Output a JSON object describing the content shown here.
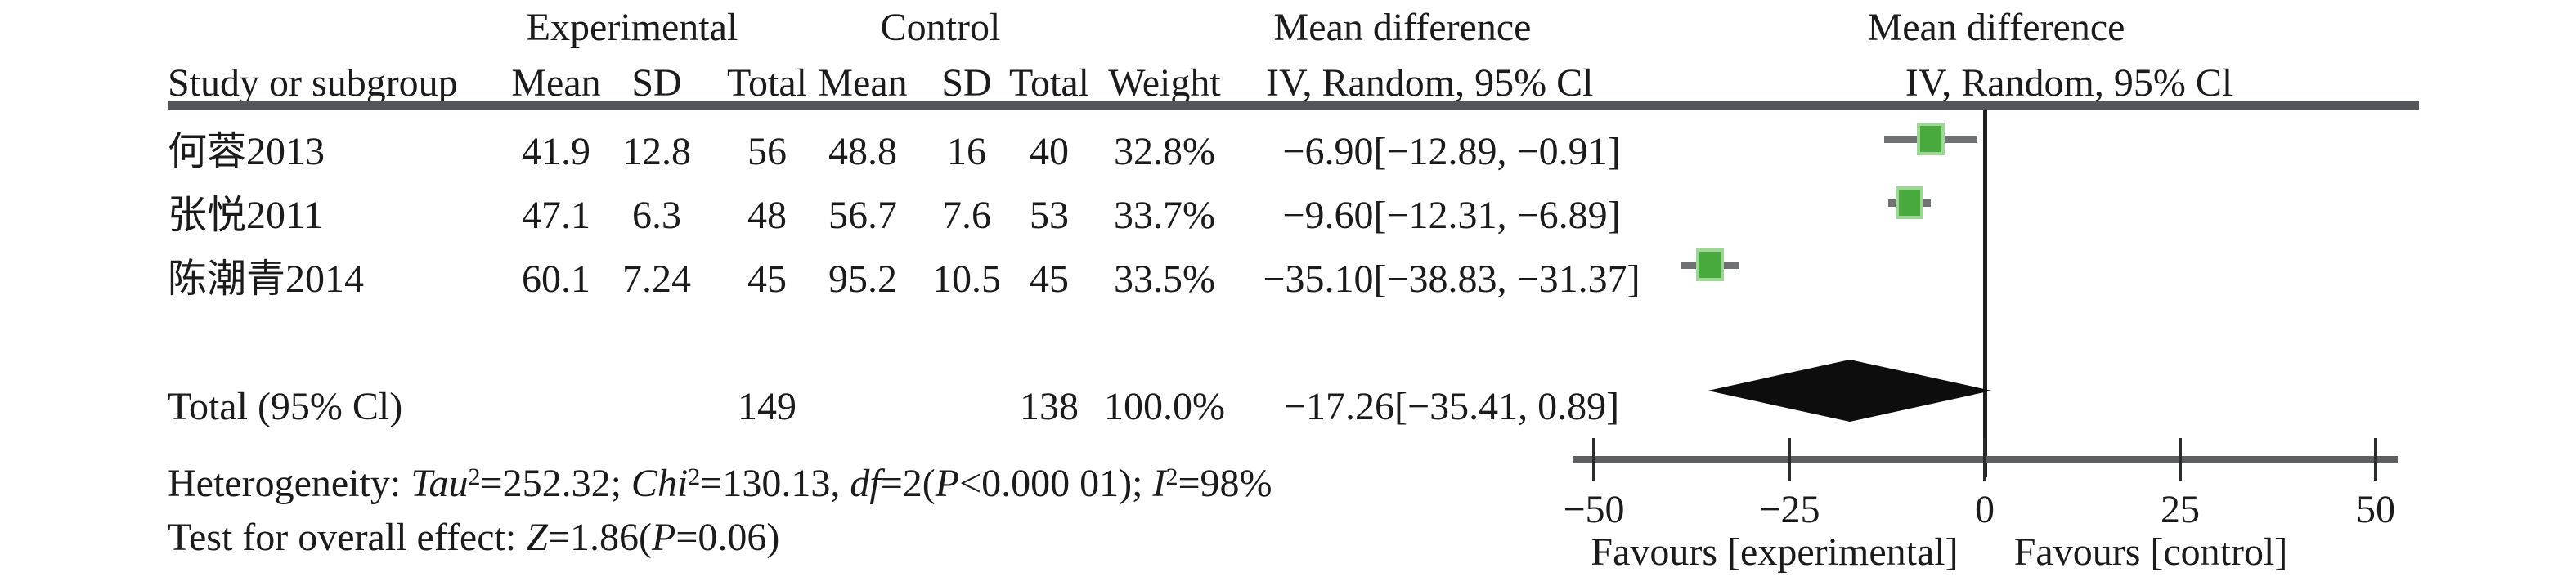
{
  "chart_data": {
    "type": "forest",
    "effect_measure": "Mean difference",
    "model": "IV, Random, 95% Cl",
    "header": {
      "group1": "Experimental",
      "group2": "Control",
      "effect_left": "Mean difference",
      "effect_right": "Mean difference",
      "study_col": "Study or subgroup",
      "mean_col": "Mean",
      "sd_col": "SD",
      "total_col": "Total",
      "weight_col": "Weight",
      "ci_left_col": "IV, Random, 95% Cl",
      "ci_right_col": "IV, Random, 95% Cl"
    },
    "studies": [
      {
        "name": "何蓉2013",
        "exp_mean": "41.9",
        "exp_sd": "12.8",
        "exp_total": "56",
        "ctrl_mean": "48.8",
        "ctrl_sd": "16",
        "ctrl_total": "40",
        "weight": "32.8%",
        "ci_text": "−6.90[−12.89, −0.91]",
        "md": -6.9,
        "ci_low": -12.89,
        "ci_high": -0.91
      },
      {
        "name": "张悦2011",
        "exp_mean": "47.1",
        "exp_sd": "6.3",
        "exp_total": "48",
        "ctrl_mean": "56.7",
        "ctrl_sd": "7.6",
        "ctrl_total": "53",
        "weight": "33.7%",
        "ci_text": "−9.60[−12.31, −6.89]",
        "md": -9.6,
        "ci_low": -12.31,
        "ci_high": -6.89
      },
      {
        "name": "陈潮青2014",
        "exp_mean": "60.1",
        "exp_sd": "7.24",
        "exp_total": "45",
        "ctrl_mean": "95.2",
        "ctrl_sd": "10.5",
        "ctrl_total": "45",
        "weight": "33.5%",
        "ci_text": "−35.10[−38.83, −31.37]",
        "md": -35.1,
        "ci_low": -38.83,
        "ci_high": -31.37
      }
    ],
    "total": {
      "label": "Total (95% Cl)",
      "exp_total": "149",
      "ctrl_total": "138",
      "weight": "100.0%",
      "ci_text": "−17.26[−35.41, 0.89]",
      "md": -17.26,
      "ci_low": -35.41,
      "ci_high": 0.89
    },
    "heterogeneity_text": "Heterogeneity: Tau²=252.32; Chi²=130.13, df=2(P<0.000 01); I²=98%",
    "het_parts": [
      {
        "text": "Heterogeneity: "
      },
      {
        "text": "Tau"
      },
      {
        "text": "2"
      },
      {
        "text": "=252.32; "
      },
      {
        "text": "Chi"
      },
      {
        "text": "2"
      },
      {
        "text": "=130.13, "
      },
      {
        "text": "df"
      },
      {
        "text": "=2("
      },
      {
        "text": "P"
      },
      {
        "text": "<0.000 01); "
      },
      {
        "text": "I"
      },
      {
        "text": "2"
      },
      {
        "text": "=98%"
      }
    ],
    "overall_effect_text": "Test for overall effect: Z=1.86(P=0.06)",
    "test_parts": [
      {
        "text": "Test for overall effect: "
      },
      {
        "text": "Z"
      },
      {
        "text": "=1.86("
      },
      {
        "text": "P"
      },
      {
        "text": "=0.06)"
      }
    ],
    "axis": {
      "min": -50,
      "max": 50,
      "ticks": [
        -50,
        -25,
        0,
        25,
        50
      ],
      "tick_labels": [
        "−50",
        "−25",
        "0",
        "25",
        "50"
      ],
      "favours_left": "Favours [experimental]",
      "favours_right": "Favours [control]"
    },
    "colors": {
      "square_green": "#48a93c",
      "square_halo": "#9ed695",
      "line_gray": "#53565a",
      "diamond_black": "#0d0d0d"
    }
  }
}
